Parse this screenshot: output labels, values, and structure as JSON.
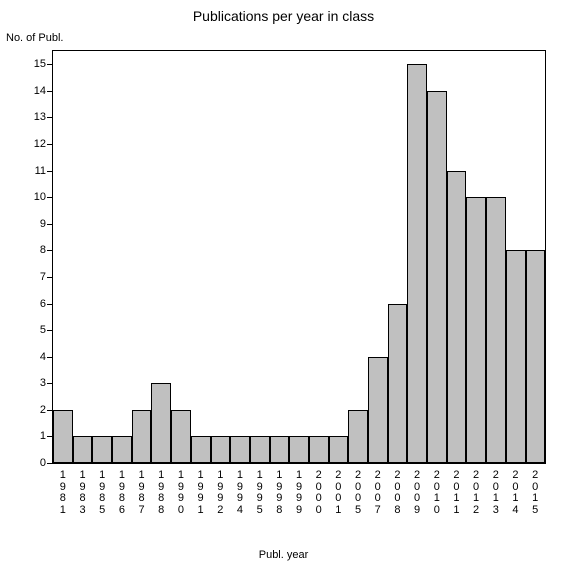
{
  "chart": {
    "type": "bar",
    "title": "Publications per year in class",
    "title_fontsize": 14,
    "ylabel": "No. of Publ.",
    "xlabel": "Publ. year",
    "label_fontsize": 11,
    "categories": [
      "1981",
      "1983",
      "1985",
      "1986",
      "1987",
      "1988",
      "1990",
      "1991",
      "1992",
      "1994",
      "1995",
      "1998",
      "1999",
      "2000",
      "2001",
      "2005",
      "2007",
      "2008",
      "2009",
      "2010",
      "2011",
      "2012",
      "2013",
      "2014",
      "2015"
    ],
    "values": [
      2,
      1,
      1,
      1,
      2,
      3,
      2,
      1,
      1,
      1,
      1,
      1,
      1,
      1,
      1,
      2,
      4,
      6,
      15,
      14,
      11,
      10,
      10,
      8,
      8
    ],
    "bar_color": "#c0c0c0",
    "bar_border_color": "#000000",
    "background_color": "#ffffff",
    "axis_color": "#000000",
    "ylim": [
      0,
      15.5
    ],
    "yticks": [
      0,
      1,
      2,
      3,
      4,
      5,
      6,
      7,
      8,
      9,
      10,
      11,
      12,
      13,
      14,
      15
    ],
    "tick_fontsize": 11
  }
}
